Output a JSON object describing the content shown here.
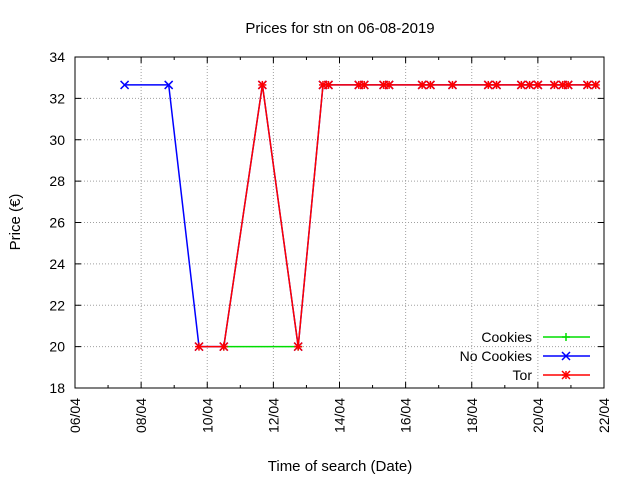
{
  "chart_data": {
    "type": "line",
    "title": "Prices for stn on 06-08-2019",
    "xlabel": "Time of search (Date)",
    "ylabel": "Price (€)",
    "xlim": [
      "2019-04-06",
      "2019-04-22"
    ],
    "ylim": [
      18,
      34
    ],
    "x_ticks": [
      "06/04",
      "08/04",
      "10/04",
      "12/04",
      "14/04",
      "16/04",
      "18/04",
      "20/04",
      "22/04"
    ],
    "y_ticks": [
      18,
      20,
      22,
      24,
      26,
      28,
      30,
      32,
      34
    ],
    "grid": true,
    "legend_position": "bottom-right",
    "series": [
      {
        "name": "Cookies",
        "color": "#00dd00",
        "marker": "plus",
        "points": [
          {
            "x": "2019-04-10 12:00",
            "y": 20
          },
          {
            "x": "2019-04-12 18:00",
            "y": 20
          }
        ]
      },
      {
        "name": "No Cookies",
        "color": "#0000ff",
        "marker": "x",
        "points": [
          {
            "x": "2019-04-07 12:00",
            "y": 32.65
          },
          {
            "x": "2019-04-08 20:00",
            "y": 32.65
          },
          {
            "x": "2019-04-09 18:00",
            "y": 20
          },
          {
            "x": "2019-04-10 12:00",
            "y": 20
          },
          {
            "x": "2019-04-11 16:00",
            "y": 32.65
          },
          {
            "x": "2019-04-12 18:00",
            "y": 20
          },
          {
            "x": "2019-04-13 12:00",
            "y": 32.65
          },
          {
            "x": "2019-04-13 16:00",
            "y": 32.65
          },
          {
            "x": "2019-04-14 14:00",
            "y": 32.65
          },
          {
            "x": "2019-04-14 18:00",
            "y": 32.65
          },
          {
            "x": "2019-04-15 08:00",
            "y": 32.65
          },
          {
            "x": "2019-04-15 12:00",
            "y": 32.65
          },
          {
            "x": "2019-04-16 12:00",
            "y": 32.65
          },
          {
            "x": "2019-04-16 18:00",
            "y": 32.65
          },
          {
            "x": "2019-04-17 10:00",
            "y": 32.65
          },
          {
            "x": "2019-04-18 12:00",
            "y": 32.65
          },
          {
            "x": "2019-04-18 18:00",
            "y": 32.65
          },
          {
            "x": "2019-04-19 12:00",
            "y": 32.65
          },
          {
            "x": "2019-04-19 18:00",
            "y": 32.65
          },
          {
            "x": "2019-04-20 00:00",
            "y": 32.65
          },
          {
            "x": "2019-04-20 12:00",
            "y": 32.65
          },
          {
            "x": "2019-04-20 18:00",
            "y": 32.65
          },
          {
            "x": "2019-04-20 22:00",
            "y": 32.65
          },
          {
            "x": "2019-04-21 12:00",
            "y": 32.65
          },
          {
            "x": "2019-04-21 18:00",
            "y": 32.65
          }
        ]
      },
      {
        "name": "Tor",
        "color": "#ff0000",
        "marker": "asterisk",
        "points": [
          {
            "x": "2019-04-09 18:00",
            "y": 20
          },
          {
            "x": "2019-04-10 12:00",
            "y": 20
          },
          {
            "x": "2019-04-11 16:00",
            "y": 32.65
          },
          {
            "x": "2019-04-12 18:00",
            "y": 20
          },
          {
            "x": "2019-04-13 12:00",
            "y": 32.65
          },
          {
            "x": "2019-04-13 16:00",
            "y": 32.65
          },
          {
            "x": "2019-04-14 14:00",
            "y": 32.65
          },
          {
            "x": "2019-04-14 18:00",
            "y": 32.65
          },
          {
            "x": "2019-04-15 08:00",
            "y": 32.65
          },
          {
            "x": "2019-04-15 12:00",
            "y": 32.65
          },
          {
            "x": "2019-04-16 12:00",
            "y": 32.65
          },
          {
            "x": "2019-04-16 18:00",
            "y": 32.65
          },
          {
            "x": "2019-04-17 10:00",
            "y": 32.65
          },
          {
            "x": "2019-04-18 12:00",
            "y": 32.65
          },
          {
            "x": "2019-04-18 18:00",
            "y": 32.65
          },
          {
            "x": "2019-04-19 12:00",
            "y": 32.65
          },
          {
            "x": "2019-04-19 18:00",
            "y": 32.65
          },
          {
            "x": "2019-04-20 00:00",
            "y": 32.65
          },
          {
            "x": "2019-04-20 12:00",
            "y": 32.65
          },
          {
            "x": "2019-04-20 18:00",
            "y": 32.65
          },
          {
            "x": "2019-04-20 22:00",
            "y": 32.65
          },
          {
            "x": "2019-04-21 12:00",
            "y": 32.65
          },
          {
            "x": "2019-04-21 18:00",
            "y": 32.65
          }
        ]
      }
    ]
  }
}
